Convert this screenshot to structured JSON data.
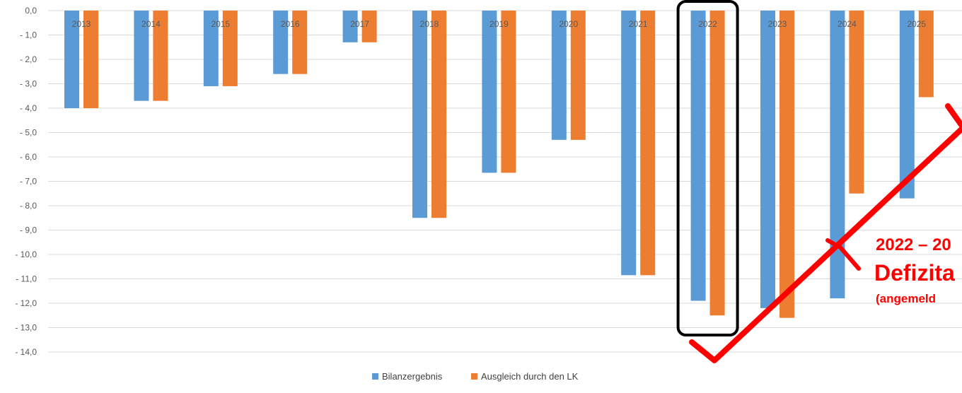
{
  "chart_data": {
    "type": "bar",
    "categories": [
      "2013",
      "2014",
      "2015",
      "2016",
      "2017",
      "2018",
      "2019",
      "2020",
      "2021",
      "2022",
      "2023",
      "2024",
      "2025"
    ],
    "series": [
      {
        "name": "Bilanzergebnis",
        "color": "#5b9bd5",
        "values": [
          -4.0,
          -3.7,
          -3.1,
          -2.6,
          -1.3,
          -8.5,
          -6.65,
          -5.3,
          -10.85,
          -11.9,
          -12.2,
          -11.8,
          -7.7
        ]
      },
      {
        "name": "Ausgleich durch den LK",
        "color": "#ed7d31",
        "values": [
          -4.0,
          -3.7,
          -3.1,
          -2.6,
          -1.3,
          -8.5,
          -6.65,
          -5.3,
          -10.85,
          -12.5,
          -12.6,
          -7.5,
          -3.55
        ]
      }
    ],
    "ylim": [
      -14.0,
      0.0
    ],
    "yticks": [
      "0,0",
      "- 1,0",
      "- 2,0",
      "- 3,0",
      "- 4,0",
      "- 5,0",
      "- 6,0",
      "- 7,0",
      "- 8,0",
      "- 9,0",
      "- 10,0",
      "- 11,0",
      "- 12,0",
      "- 13,0",
      "- 14,0"
    ],
    "grid": true,
    "legend_position": "bottom",
    "highlight_category": "2022"
  },
  "annotation": {
    "line1": "2022 – 20",
    "line2": "Defizita",
    "line3": "(angemeld",
    "color": "#ff0000"
  }
}
